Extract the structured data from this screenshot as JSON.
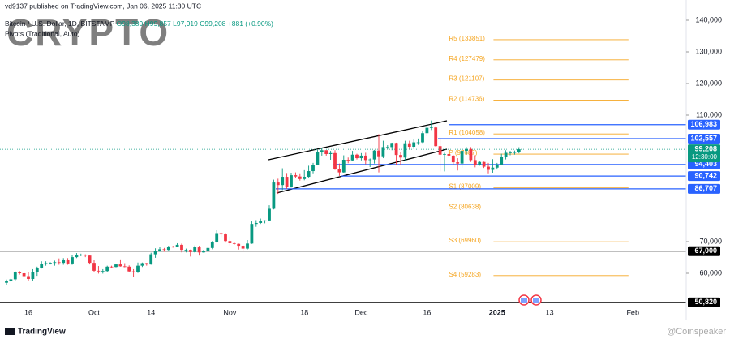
{
  "header": {
    "published": "vd9137 published on TradingView.com, Jan 06, 2025 11:30 UTC",
    "symbol": "Bitcoin / U.S. Dollar, 1D, BITSTAMP",
    "open": "O98,389",
    "high": "H99,857",
    "low": "L97,919",
    "close": "C99,208",
    "change": "+881 (+0.90%)",
    "indicator": "Pivots (Traditional, Auto)",
    "watermark": "CRYPTO"
  },
  "footer": {
    "brand": "TradingView",
    "credit": "@Coinspeaker"
  },
  "chart_data": {
    "type": "candlestick",
    "up_color": "#089981",
    "down_color": "#f23645",
    "ylim": [
      49490,
      146410
    ],
    "yticks": [
      {
        "value": 140000,
        "label": "140,000"
      },
      {
        "value": 130000,
        "label": "130,000"
      },
      {
        "value": 120000,
        "label": "120,000"
      },
      {
        "value": 110000,
        "label": "110,000"
      },
      {
        "value": 70000,
        "label": "70,000"
      },
      {
        "value": 60000,
        "label": "60,000"
      }
    ],
    "xticks": [
      {
        "value": 5,
        "label": "16"
      },
      {
        "value": 20,
        "label": "Oct"
      },
      {
        "value": 33,
        "label": "14"
      },
      {
        "value": 51,
        "label": "Nov"
      },
      {
        "value": 68,
        "label": "18"
      },
      {
        "value": 81,
        "label": "Dec"
      },
      {
        "value": 96,
        "label": "16"
      },
      {
        "value": 112,
        "label": "2025"
      },
      {
        "value": 124,
        "label": "13"
      },
      {
        "value": 143,
        "label": "Feb"
      }
    ],
    "candles": [
      [
        57000,
        58000,
        56300,
        57600
      ],
      [
        57600,
        58500,
        57200,
        58100
      ],
      [
        58100,
        60600,
        57700,
        60500
      ],
      [
        60500,
        60700,
        59600,
        60000
      ],
      [
        60000,
        60400,
        58800,
        59100
      ],
      [
        59100,
        60300,
        57500,
        58200
      ],
      [
        58200,
        61300,
        57700,
        60300
      ],
      [
        60300,
        62100,
        59200,
        61700
      ],
      [
        61700,
        63800,
        61500,
        62900
      ],
      [
        62900,
        63800,
        62400,
        63200
      ],
      [
        63200,
        63500,
        62800,
        63300
      ],
      [
        63300,
        64000,
        62400,
        63500
      ],
      [
        63500,
        64700,
        62700,
        63300
      ],
      [
        63300,
        64800,
        62700,
        64200
      ],
      [
        64200,
        64800,
        62700,
        63100
      ],
      [
        63100,
        65700,
        62700,
        65100
      ],
      [
        65100,
        66400,
        64800,
        65800
      ],
      [
        65800,
        66200,
        65400,
        65900
      ],
      [
        65900,
        66000,
        65100,
        65600
      ],
      [
        65600,
        65600,
        62800,
        63300
      ],
      [
        63300,
        64100,
        60300,
        60800
      ],
      [
        60800,
        62300,
        59900,
        60600
      ],
      [
        60600,
        61300,
        59900,
        60700
      ],
      [
        60700,
        62400,
        60400,
        62100
      ],
      [
        62100,
        62400,
        61700,
        62000
      ],
      [
        62000,
        63000,
        61900,
        62800
      ],
      [
        62800,
        64400,
        62100,
        62200
      ],
      [
        62200,
        63200,
        61900,
        62100
      ],
      [
        62100,
        62500,
        60400,
        60600
      ],
      [
        60600,
        61300,
        58900,
        60300
      ],
      [
        60300,
        63400,
        60100,
        62400
      ],
      [
        62400,
        63400,
        62000,
        63200
      ],
      [
        63200,
        63300,
        62400,
        62800
      ],
      [
        62800,
        66500,
        62700,
        66000
      ],
      [
        66000,
        67900,
        64900,
        67000
      ],
      [
        67000,
        68400,
        66800,
        67600
      ],
      [
        67600,
        68000,
        66800,
        67400
      ],
      [
        67400,
        68700,
        67200,
        68400
      ],
      [
        68400,
        68700,
        68100,
        68300
      ],
      [
        68300,
        69500,
        68300,
        69000
      ],
      [
        69000,
        69400,
        66600,
        67400
      ],
      [
        67400,
        67800,
        66600,
        67400
      ],
      [
        67400,
        67500,
        65300,
        66700
      ],
      [
        66700,
        68800,
        66500,
        68200
      ],
      [
        68200,
        68700,
        65600,
        66600
      ],
      [
        66600,
        67400,
        66500,
        67000
      ],
      [
        67000,
        68300,
        66800,
        68000
      ],
      [
        68000,
        70200,
        67600,
        69900
      ],
      [
        69900,
        73600,
        69700,
        72700
      ],
      [
        72700,
        72900,
        71400,
        72300
      ],
      [
        72300,
        72700,
        69700,
        70200
      ],
      [
        70200,
        71600,
        68800,
        69500
      ],
      [
        69500,
        69900,
        69000,
        69300
      ],
      [
        69300,
        69400,
        67500,
        68700
      ],
      [
        68700,
        69000,
        66800,
        67800
      ],
      [
        67800,
        70500,
        67500,
        69400
      ],
      [
        69400,
        76400,
        69300,
        75600
      ],
      [
        75600,
        76800,
        74700,
        75900
      ],
      [
        75900,
        77300,
        75600,
        76500
      ],
      [
        76500,
        76800,
        75800,
        76700
      ],
      [
        76700,
        81500,
        76500,
        80400
      ],
      [
        80400,
        89600,
        80200,
        88700
      ],
      [
        88700,
        89900,
        85100,
        87900
      ],
      [
        87900,
        93200,
        86300,
        90500
      ],
      [
        90500,
        91700,
        86700,
        87300
      ],
      [
        87300,
        91800,
        87100,
        91000
      ],
      [
        91000,
        91900,
        90100,
        90600
      ],
      [
        90600,
        91600,
        89300,
        89800
      ],
      [
        89800,
        92600,
        89400,
        90500
      ],
      [
        90500,
        94000,
        90300,
        92300
      ],
      [
        92300,
        94900,
        91600,
        94300
      ],
      [
        94300,
        99000,
        94100,
        98300
      ],
      [
        98300,
        99600,
        97200,
        98900
      ],
      [
        98900,
        98900,
        97200,
        97700
      ],
      [
        97700,
        98700,
        95900,
        98000
      ],
      [
        98000,
        98900,
        92700,
        93000
      ],
      [
        93000,
        94700,
        90800,
        91900
      ],
      [
        91900,
        97300,
        91800,
        95900
      ],
      [
        95900,
        96600,
        94800,
        95700
      ],
      [
        95700,
        98700,
        95400,
        97500
      ],
      [
        97500,
        97800,
        96000,
        96400
      ],
      [
        96400,
        98000,
        95700,
        97200
      ],
      [
        97200,
        98100,
        94500,
        95800
      ],
      [
        95800,
        96300,
        93600,
        96000
      ],
      [
        96000,
        99000,
        94700,
        98800
      ],
      [
        98800,
        104000,
        91900,
        97000
      ],
      [
        97000,
        101900,
        96400,
        99900
      ],
      [
        99900,
        100500,
        99200,
        99900
      ],
      [
        99900,
        101300,
        98900,
        101200
      ],
      [
        101200,
        101300,
        94200,
        97400
      ],
      [
        97400,
        98200,
        94300,
        96600
      ],
      [
        96600,
        101900,
        95700,
        101100
      ],
      [
        101100,
        101900,
        99200,
        100000
      ],
      [
        100000,
        102500,
        99300,
        101400
      ],
      [
        101400,
        102600,
        100600,
        101400
      ],
      [
        101400,
        105100,
        101200,
        104300
      ],
      [
        104300,
        107700,
        103300,
        106000
      ],
      [
        106000,
        108300,
        105300,
        106100
      ],
      [
        106100,
        106500,
        100000,
        100200
      ],
      [
        100200,
        102800,
        92200,
        97500
      ],
      [
        97500,
        98100,
        92200,
        97700
      ],
      [
        97700,
        99500,
        96400,
        97200
      ],
      [
        97200,
        97400,
        94200,
        95100
      ],
      [
        95100,
        96400,
        92500,
        94700
      ],
      [
        94700,
        99400,
        93400,
        98700
      ],
      [
        98700,
        99900,
        97600,
        99300
      ],
      [
        99300,
        99900,
        95200,
        95800
      ],
      [
        95800,
        97300,
        93500,
        94200
      ],
      [
        94200,
        95500,
        94000,
        95200
      ],
      [
        95200,
        95300,
        93300,
        93700
      ],
      [
        93700,
        94900,
        91600,
        92700
      ],
      [
        92700,
        96100,
        91800,
        93400
      ],
      [
        93400,
        94900,
        92800,
        94400
      ],
      [
        94400,
        97800,
        94200,
        96900
      ],
      [
        96900,
        98900,
        96000,
        98100
      ],
      [
        98100,
        98700,
        97300,
        98200
      ],
      [
        98200,
        98800,
        97500,
        98300
      ],
      [
        98389,
        99857,
        97919,
        99208
      ]
    ],
    "pivots": [
      {
        "name": "R5",
        "value": 133851,
        "label": "(133851)"
      },
      {
        "name": "R4",
        "value": 127479,
        "label": "(127479)"
      },
      {
        "name": "R3",
        "value": 121107,
        "label": "(121107)"
      },
      {
        "name": "R2",
        "value": 114736,
        "label": "(114736)"
      },
      {
        "name": "R1",
        "value": 104058,
        "label": "(104058)"
      },
      {
        "name": "P",
        "value": 97687,
        "label": "(97687)"
      },
      {
        "name": "S1",
        "value": 87009,
        "label": "(87009)"
      },
      {
        "name": "S2",
        "value": 80638,
        "label": "(80638)"
      },
      {
        "name": "S3",
        "value": 69960,
        "label": "(69960)"
      },
      {
        "name": "S4",
        "value": 59283,
        "label": "(59283)"
      }
    ],
    "pivot_color": "#f5a623",
    "levels": [
      {
        "value": 106983,
        "label": "106,983",
        "color": "#2962ff"
      },
      {
        "value": 102557,
        "label": "102,557",
        "color": "#2962ff"
      },
      {
        "value": 94403,
        "label": "94,403",
        "color": "#2962ff"
      },
      {
        "value": 90742,
        "label": "90,742",
        "color": "#2962ff"
      },
      {
        "value": 86707,
        "label": "86,707",
        "color": "#2962ff"
      },
      {
        "value": 67000,
        "label": "67,000",
        "color": "#000000"
      },
      {
        "value": 50820,
        "label": "50,820",
        "color": "#000000"
      }
    ],
    "last_price": {
      "value": 99208,
      "label": "99,208",
      "countdown": "12:30:00",
      "color": "#089981"
    }
  }
}
